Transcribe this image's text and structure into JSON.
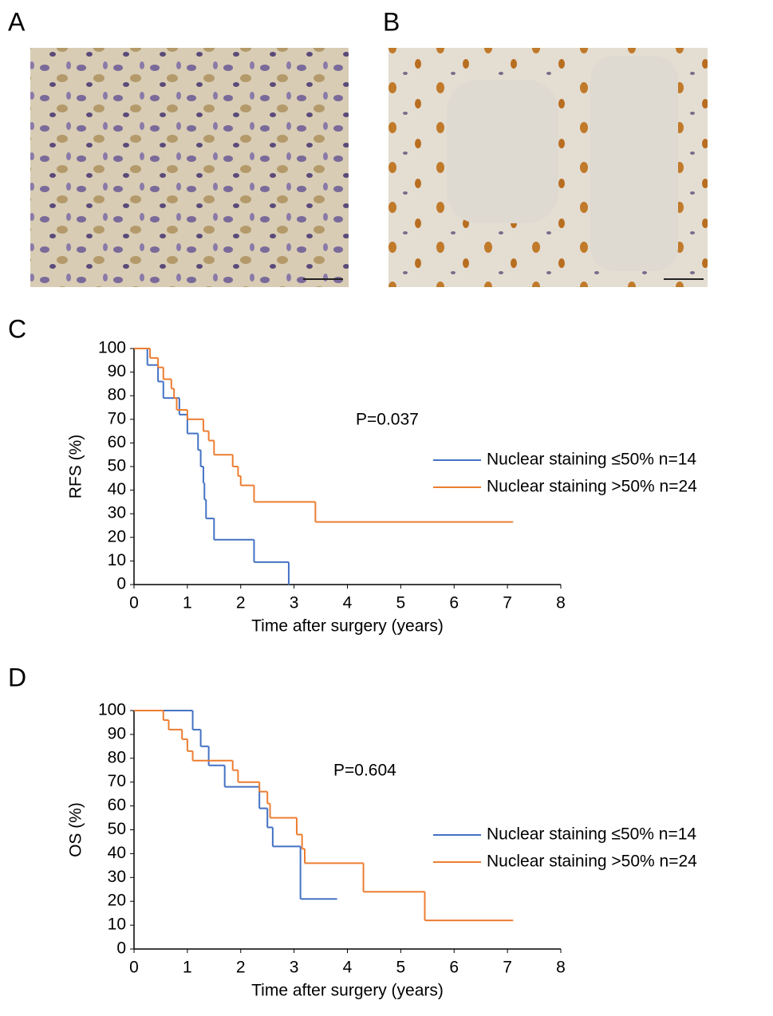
{
  "image_panels": [
    {
      "label": "A"
    },
    {
      "label": "B"
    }
  ],
  "chart_data": [
    {
      "type": "step",
      "panel_label": "C",
      "ylabel": "RFS (%)",
      "xlabel": "Time after surgery (years)",
      "annotation": "P=0.037",
      "xlim": [
        0,
        8
      ],
      "ylim": [
        0,
        100
      ],
      "xticks": [
        0,
        1,
        2,
        3,
        4,
        5,
        6,
        7,
        8
      ],
      "yticks": [
        0,
        10,
        20,
        30,
        40,
        50,
        60,
        70,
        80,
        90,
        100
      ],
      "grid": false,
      "legend": "right",
      "series": [
        {
          "name": "Nuclear staining ≤50% n=14",
          "color": "#4472c4",
          "x": [
            0,
            0.25,
            0.45,
            0.55,
            0.85,
            1.0,
            1.2,
            1.25,
            1.3,
            1.32,
            1.35,
            1.5,
            2.25,
            2.9
          ],
          "values": [
            100,
            93,
            86,
            79,
            72,
            64,
            57,
            50,
            43,
            36,
            28,
            19,
            9.5,
            0
          ]
        },
        {
          "name": "Nuclear staining >50% n=24",
          "color": "#ed7d31",
          "x": [
            0,
            0.3,
            0.45,
            0.55,
            0.7,
            0.75,
            0.8,
            1.0,
            1.3,
            1.4,
            1.5,
            1.85,
            1.95,
            2.0,
            2.25,
            3.4,
            7.1
          ],
          "values": [
            100,
            96,
            92,
            87,
            83,
            79,
            74,
            70,
            65,
            61,
            55,
            50,
            46,
            42,
            35,
            26.5,
            26.5
          ]
        }
      ]
    },
    {
      "type": "step",
      "panel_label": "D",
      "ylabel": "OS (%)",
      "xlabel": "Time after surgery (years)",
      "annotation": "P=0.604",
      "xlim": [
        0,
        8
      ],
      "ylim": [
        0,
        100
      ],
      "xticks": [
        0,
        1,
        2,
        3,
        4,
        5,
        6,
        7,
        8
      ],
      "yticks": [
        0,
        10,
        20,
        30,
        40,
        50,
        60,
        70,
        80,
        90,
        100
      ],
      "grid": false,
      "legend": "right",
      "series": [
        {
          "name": "Nuclear staining ≤50% n=14",
          "color": "#4472c4",
          "x": [
            0,
            1.1,
            1.25,
            1.4,
            1.7,
            2.35,
            2.5,
            2.6,
            3.12,
            3.8
          ],
          "values": [
            100,
            92,
            85,
            77,
            68,
            59,
            51,
            43,
            21,
            21
          ]
        },
        {
          "name": "Nuclear staining >50% n=24",
          "color": "#ed7d31",
          "x": [
            0,
            0.55,
            0.65,
            0.9,
            1.0,
            1.1,
            1.85,
            1.95,
            2.35,
            2.5,
            2.55,
            3.05,
            3.15,
            3.2,
            4.3,
            5.45,
            7.1
          ],
          "values": [
            100,
            96,
            92,
            88,
            83,
            79,
            75,
            70,
            66,
            61,
            55,
            48,
            42,
            36,
            24,
            12,
            12
          ]
        }
      ]
    }
  ]
}
